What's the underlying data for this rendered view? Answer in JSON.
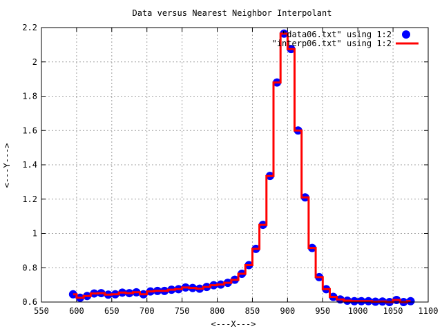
{
  "chart_data": {
    "type": "scatter",
    "title": "Data versus Nearest Neighbor Interpolant",
    "xlabel": "<---X--->",
    "ylabel": "<---Y--->",
    "xlim": [
      550,
      1100
    ],
    "ylim": [
      0.6,
      2.2
    ],
    "x_ticks": [
      550,
      600,
      650,
      700,
      750,
      800,
      850,
      900,
      950,
      1000,
      1050,
      1100
    ],
    "y_ticks": [
      0.6,
      0.8,
      1,
      1.2,
      1.4,
      1.6,
      1.8,
      2,
      2.2
    ],
    "grid": true,
    "legend_position": "top-right",
    "series": [
      {
        "name": "\"data06.txt\" using 1:2",
        "style": "points",
        "color": "#0000ff",
        "x": [
          595,
          605,
          615,
          625,
          635,
          645,
          655,
          665,
          675,
          685,
          695,
          705,
          715,
          725,
          735,
          745,
          755,
          765,
          775,
          785,
          795,
          805,
          815,
          825,
          835,
          845,
          855,
          865,
          875,
          885,
          895,
          905,
          915,
          925,
          935,
          945,
          955,
          965,
          975,
          985,
          995,
          1005,
          1015,
          1025,
          1035,
          1045,
          1055,
          1065,
          1075
        ],
        "y": [
          0.645,
          0.625,
          0.635,
          0.65,
          0.652,
          0.643,
          0.645,
          0.655,
          0.652,
          0.657,
          0.645,
          0.662,
          0.665,
          0.665,
          0.672,
          0.675,
          0.685,
          0.682,
          0.678,
          0.688,
          0.698,
          0.702,
          0.712,
          0.73,
          0.765,
          0.815,
          0.91,
          1.05,
          1.335,
          1.88,
          2.165,
          2.075,
          1.6,
          1.21,
          0.915,
          0.745,
          0.675,
          0.63,
          0.615,
          0.608,
          0.605,
          0.605,
          0.605,
          0.602,
          0.603,
          0.6,
          0.612,
          0.6,
          0.605
        ]
      },
      {
        "name": "\"interp06.txt\" using 1:2",
        "style": "steps",
        "color": "#ff0000",
        "x": [
          595,
          605,
          615,
          625,
          635,
          645,
          655,
          665,
          675,
          685,
          695,
          705,
          715,
          725,
          735,
          745,
          755,
          765,
          775,
          785,
          795,
          805,
          815,
          825,
          835,
          845,
          855,
          865,
          875,
          885,
          895,
          905,
          915,
          925,
          935,
          945,
          955,
          965,
          975,
          985,
          995,
          1005,
          1015,
          1025,
          1035,
          1045,
          1055,
          1065,
          1075
        ],
        "y": [
          0.645,
          0.625,
          0.635,
          0.65,
          0.652,
          0.643,
          0.645,
          0.655,
          0.652,
          0.657,
          0.645,
          0.662,
          0.665,
          0.665,
          0.672,
          0.675,
          0.685,
          0.682,
          0.678,
          0.688,
          0.698,
          0.702,
          0.712,
          0.73,
          0.765,
          0.815,
          0.91,
          1.05,
          1.335,
          1.88,
          2.165,
          2.075,
          1.6,
          1.21,
          0.915,
          0.745,
          0.675,
          0.63,
          0.615,
          0.608,
          0.605,
          0.605,
          0.605,
          0.602,
          0.603,
          0.6,
          0.612,
          0.6,
          0.605
        ]
      }
    ]
  }
}
